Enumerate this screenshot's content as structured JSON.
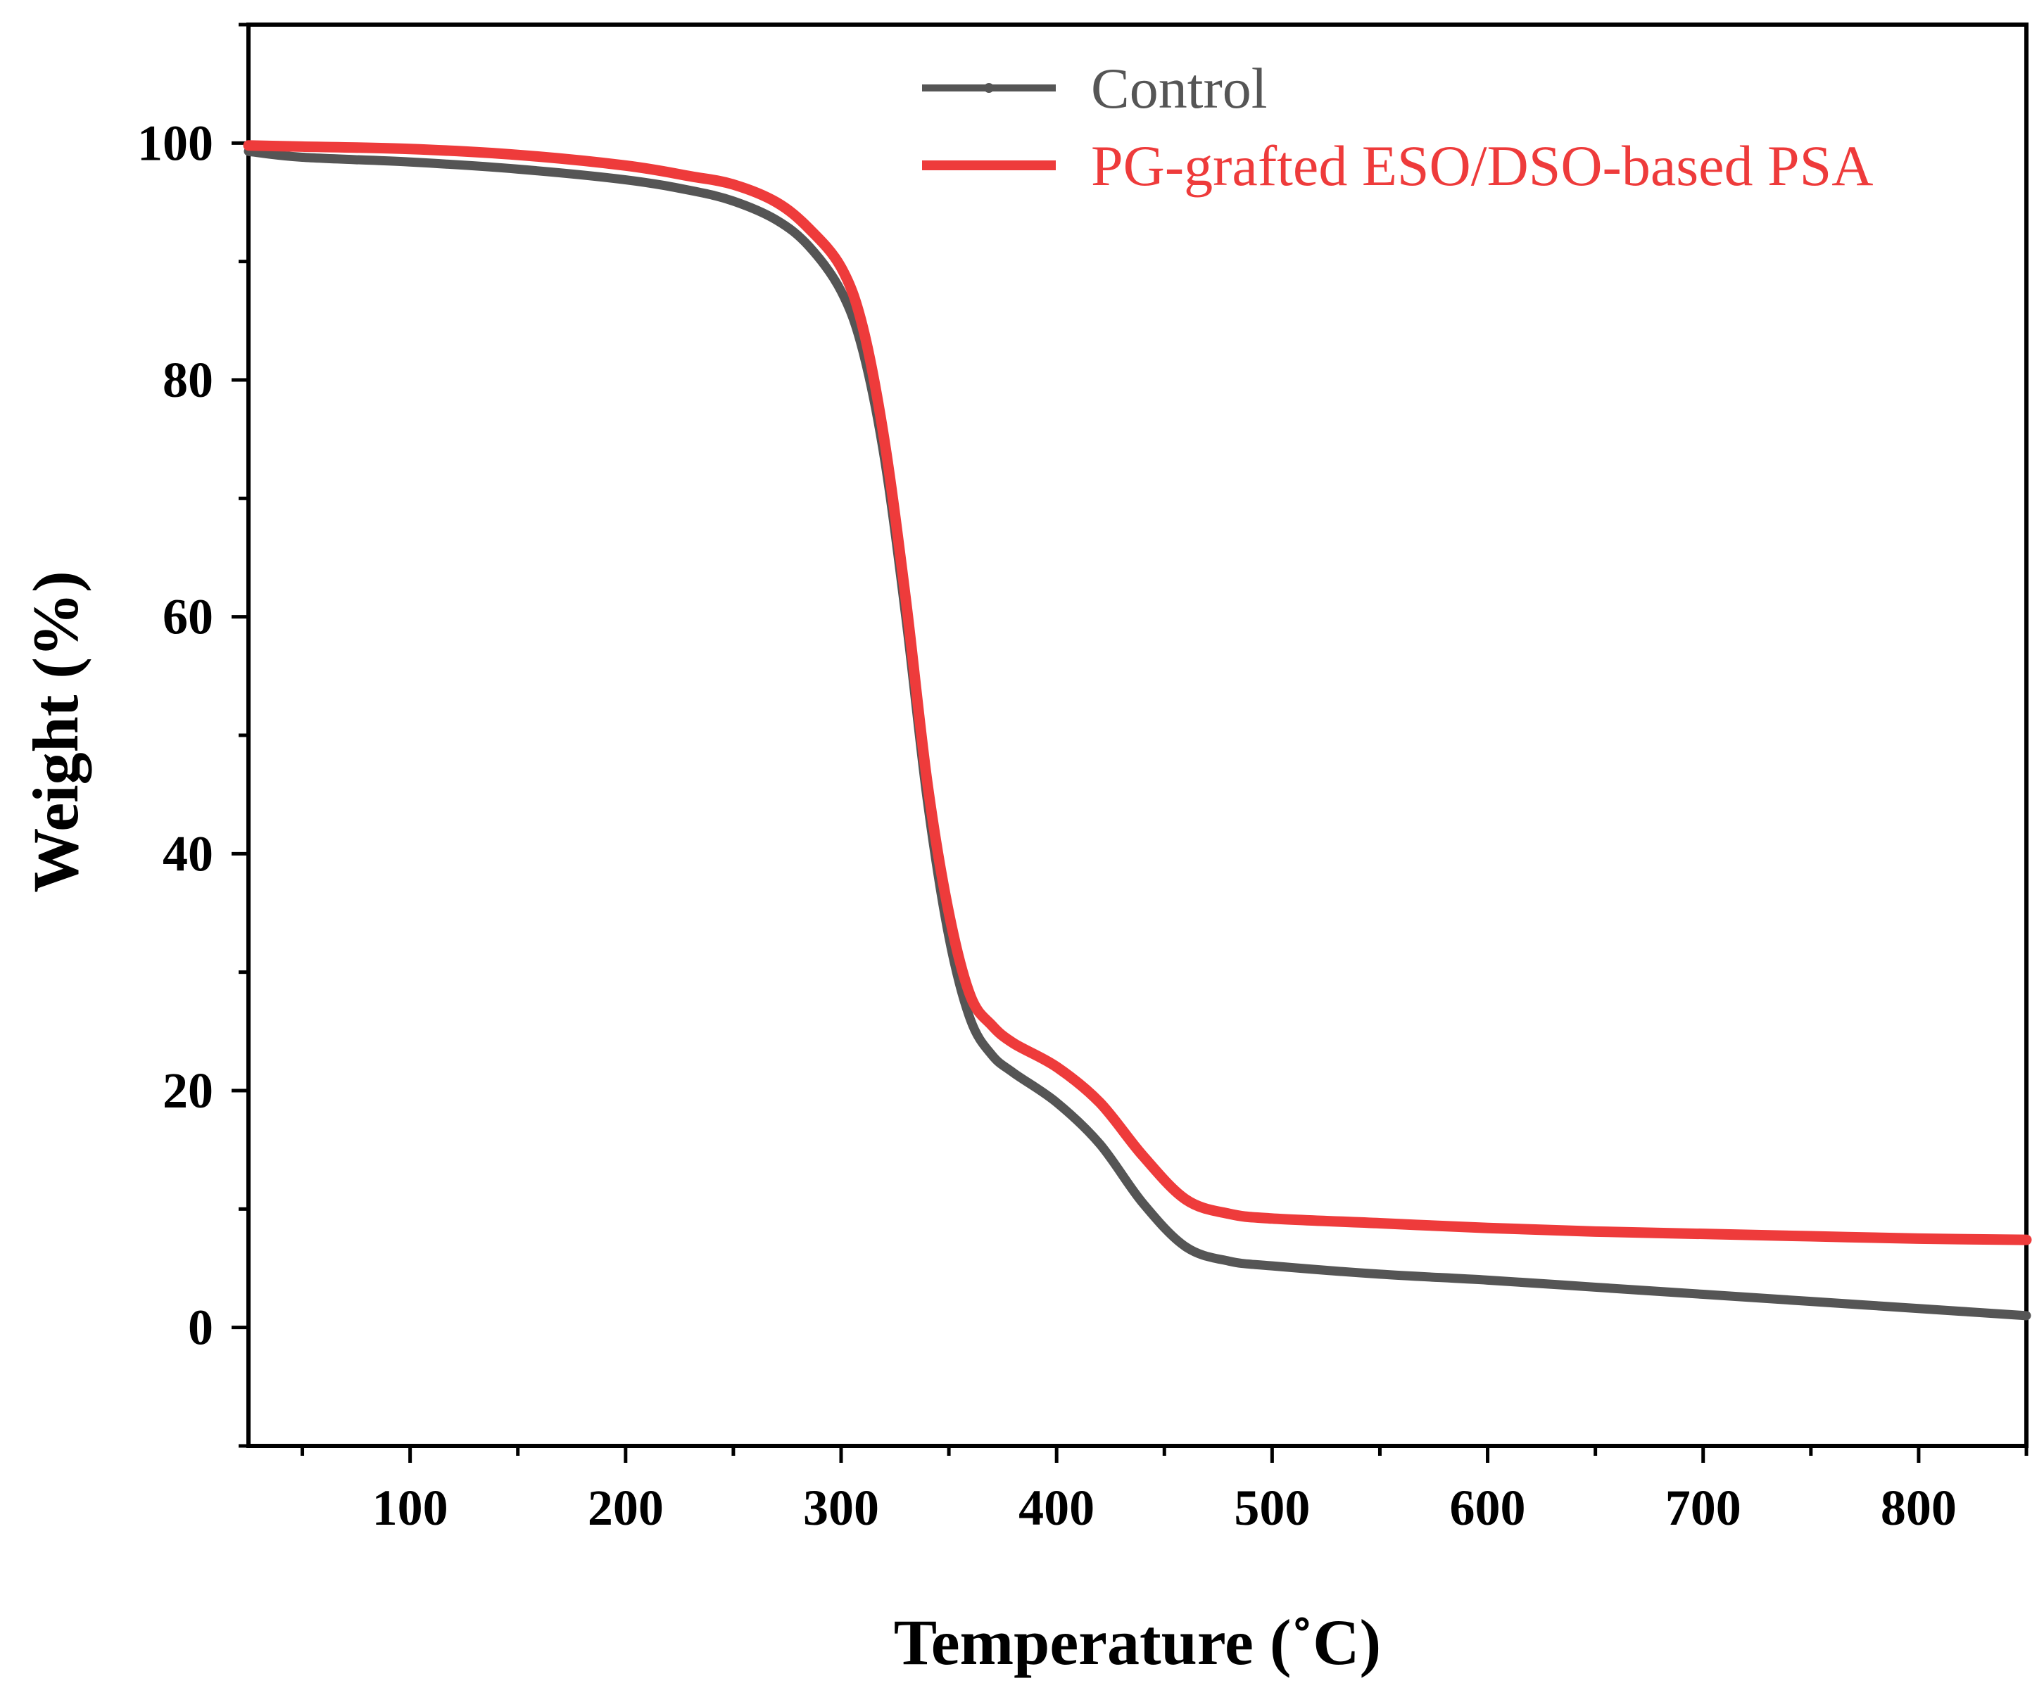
{
  "chart_data": {
    "type": "line",
    "title": "",
    "xlabel": "Temperature (˚C)",
    "ylabel": "Weight (%)",
    "xlim": [
      25,
      850
    ],
    "ylim": [
      -10,
      110
    ],
    "xticks": [
      100,
      200,
      300,
      400,
      500,
      600,
      700,
      800
    ],
    "yticks": [
      0,
      20,
      40,
      60,
      80,
      100
    ],
    "grid": false,
    "legend_position": "top-center",
    "series": [
      {
        "name": "Control",
        "color": "#555555",
        "x": [
          25,
          50,
          100,
          150,
          200,
          230,
          250,
          270,
          285,
          300,
          310,
          320,
          330,
          340,
          350,
          360,
          370,
          380,
          400,
          420,
          440,
          460,
          480,
          500,
          550,
          600,
          650,
          700,
          750,
          800,
          850
        ],
        "y": [
          99.3,
          98.8,
          98.4,
          97.8,
          96.9,
          96.0,
          95.1,
          93.5,
          91.3,
          87.5,
          82.5,
          73.5,
          60.0,
          44.5,
          33.0,
          26.0,
          23.0,
          21.5,
          19.0,
          15.5,
          10.5,
          6.8,
          5.6,
          5.2,
          4.5,
          4.0,
          3.4,
          2.8,
          2.2,
          1.6,
          1.0
        ]
      },
      {
        "name": "PG-grafted ESO/DSO-based PSA",
        "color": "#ee3b3b",
        "x": [
          25,
          50,
          100,
          150,
          200,
          230,
          250,
          270,
          285,
          300,
          310,
          320,
          330,
          340,
          350,
          360,
          370,
          380,
          400,
          420,
          440,
          460,
          480,
          500,
          550,
          600,
          650,
          700,
          750,
          800,
          850
        ],
        "y": [
          99.8,
          99.7,
          99.5,
          99.0,
          98.1,
          97.2,
          96.5,
          95.0,
          92.8,
          89.5,
          84.5,
          75.0,
          61.5,
          46.0,
          35.0,
          28.0,
          25.5,
          24.0,
          22.0,
          19.0,
          14.5,
          10.8,
          9.6,
          9.2,
          8.8,
          8.4,
          8.1,
          7.9,
          7.7,
          7.5,
          7.4
        ]
      }
    ]
  }
}
